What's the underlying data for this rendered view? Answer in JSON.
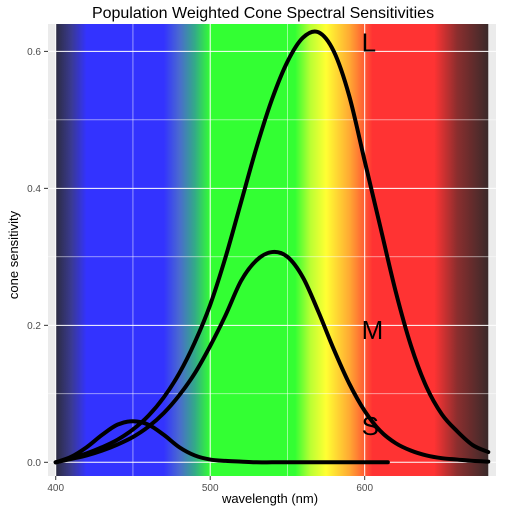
{
  "chart_data": {
    "type": "line",
    "title": "Population Weighted Cone Spectral Sensitivities",
    "xlabel": "wavelength (nm)",
    "ylabel": "cone sensitivity",
    "xlim": [
      395,
      685
    ],
    "ylim": [
      -0.02,
      0.64
    ],
    "xticks": [
      400,
      500,
      600
    ],
    "yticks": [
      0.0,
      0.2,
      0.4,
      0.6
    ],
    "ytick_labels": [
      "0.0",
      "0.2",
      "0.4",
      "0.6"
    ],
    "grid": true,
    "background": "#ebebeb",
    "spectrum_band": [
      400,
      680
    ],
    "spectrum_colors": [
      {
        "nm": 400,
        "color": "#2b2b40"
      },
      {
        "nm": 410,
        "color": "#3a3a90"
      },
      {
        "nm": 420,
        "color": "#3333ff"
      },
      {
        "nm": 470,
        "color": "#3333ff"
      },
      {
        "nm": 480,
        "color": "#4a6ad0"
      },
      {
        "nm": 490,
        "color": "#33aa88"
      },
      {
        "nm": 500,
        "color": "#33ff33"
      },
      {
        "nm": 555,
        "color": "#33ff33"
      },
      {
        "nm": 565,
        "color": "#bbff33"
      },
      {
        "nm": 575,
        "color": "#ffff33"
      },
      {
        "nm": 590,
        "color": "#ffaa33"
      },
      {
        "nm": 605,
        "color": "#ff3333"
      },
      {
        "nm": 645,
        "color": "#ff3333"
      },
      {
        "nm": 660,
        "color": "#8a2e2e"
      },
      {
        "nm": 680,
        "color": "#3a2a2a"
      }
    ],
    "series": [
      {
        "name": "L",
        "x": [
          400,
          410,
          420,
          430,
          440,
          450,
          460,
          470,
          480,
          490,
          500,
          510,
          520,
          530,
          540,
          550,
          560,
          570,
          580,
          590,
          600,
          610,
          620,
          630,
          640,
          650,
          660,
          670,
          680
        ],
        "values": [
          0.0,
          0.006,
          0.013,
          0.022,
          0.033,
          0.048,
          0.068,
          0.095,
          0.13,
          0.175,
          0.23,
          0.3,
          0.38,
          0.46,
          0.53,
          0.585,
          0.62,
          0.628,
          0.6,
          0.535,
          0.44,
          0.345,
          0.25,
          0.17,
          0.11,
          0.07,
          0.045,
          0.025,
          0.015
        ]
      },
      {
        "name": "M",
        "x": [
          400,
          410,
          420,
          430,
          440,
          450,
          460,
          470,
          480,
          490,
          500,
          510,
          520,
          530,
          540,
          550,
          560,
          570,
          580,
          590,
          600,
          610,
          620,
          630,
          640,
          650,
          660,
          670,
          680
        ],
        "values": [
          0.0,
          0.005,
          0.01,
          0.017,
          0.026,
          0.037,
          0.052,
          0.072,
          0.098,
          0.13,
          0.17,
          0.215,
          0.265,
          0.295,
          0.307,
          0.3,
          0.27,
          0.22,
          0.165,
          0.115,
          0.075,
          0.046,
          0.028,
          0.017,
          0.01,
          0.006,
          0.004,
          0.002,
          0.001
        ]
      },
      {
        "name": "S",
        "x": [
          400,
          410,
          420,
          430,
          440,
          450,
          460,
          470,
          480,
          490,
          500,
          510,
          520,
          530,
          540,
          550,
          560,
          570,
          580,
          590,
          600,
          610,
          615
        ],
        "values": [
          0.0,
          0.008,
          0.022,
          0.04,
          0.055,
          0.06,
          0.055,
          0.04,
          0.022,
          0.01,
          0.004,
          0.002,
          0.001,
          0.0,
          0.0,
          0.0,
          0.0,
          0.0,
          0.0,
          0.0,
          0.0,
          0.0,
          0.0
        ]
      }
    ],
    "series_label_positions": [
      {
        "name": "L",
        "x": 598,
        "y": 0.6
      },
      {
        "name": "M",
        "x": 598,
        "y": 0.18
      },
      {
        "name": "S",
        "x": 598,
        "y": 0.04
      }
    ],
    "line_color": "#000000"
  }
}
